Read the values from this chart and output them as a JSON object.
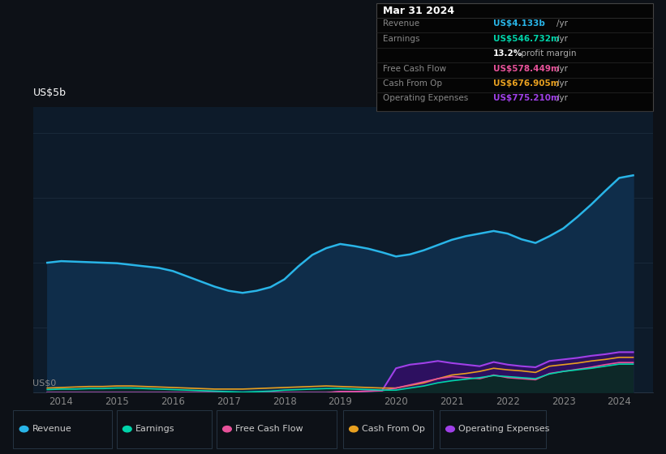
{
  "bg_color": "#0d1117",
  "plot_bg_color": "#0d1b2a",
  "ylabel": "US$5b",
  "y0label": "US$0",
  "ylim": [
    0,
    5.5
  ],
  "yticks": [
    0,
    1.25,
    2.5,
    3.75,
    5.0
  ],
  "xlim": [
    2013.5,
    2024.6
  ],
  "xticks": [
    2014,
    2015,
    2016,
    2017,
    2018,
    2019,
    2020,
    2021,
    2022,
    2023,
    2024
  ],
  "revenue_color": "#29b5e8",
  "earnings_color": "#00d4aa",
  "fcf_color": "#e8529a",
  "cashop_color": "#e8a020",
  "opex_color": "#a040e8",
  "revenue_fill": "#0f2d4a",
  "earnings_fill": "#0d3030",
  "opex_fill": "#3a1070",
  "info_box": {
    "title": "Mar 31 2024",
    "rows": [
      {
        "label": "Revenue",
        "value": "US$4.133b",
        "unit": "/yr",
        "color": "#29b5e8"
      },
      {
        "label": "Earnings",
        "value": "US$546.732m",
        "unit": "/yr",
        "color": "#00d4aa"
      },
      {
        "label": "",
        "value": "13.2%",
        "unit": " profit margin",
        "color": "#ffffff"
      },
      {
        "label": "Free Cash Flow",
        "value": "US$578.449m",
        "unit": "/yr",
        "color": "#e8529a"
      },
      {
        "label": "Cash From Op",
        "value": "US$676.905m",
        "unit": "/yr",
        "color": "#e8a020"
      },
      {
        "label": "Operating Expenses",
        "value": "US$775.210m",
        "unit": "/yr",
        "color": "#a040e8"
      }
    ]
  },
  "years": [
    2013.75,
    2014.0,
    2014.25,
    2014.5,
    2014.75,
    2015.0,
    2015.25,
    2015.5,
    2015.75,
    2016.0,
    2016.25,
    2016.5,
    2016.75,
    2017.0,
    2017.25,
    2017.5,
    2017.75,
    2018.0,
    2018.25,
    2018.5,
    2018.75,
    2019.0,
    2019.25,
    2019.5,
    2019.75,
    2020.0,
    2020.25,
    2020.5,
    2020.75,
    2021.0,
    2021.25,
    2021.5,
    2021.75,
    2022.0,
    2022.25,
    2022.5,
    2022.75,
    2023.0,
    2023.25,
    2023.5,
    2023.75,
    2024.0,
    2024.25
  ],
  "revenue": [
    2.5,
    2.53,
    2.52,
    2.51,
    2.5,
    2.49,
    2.46,
    2.43,
    2.4,
    2.34,
    2.24,
    2.14,
    2.04,
    1.96,
    1.92,
    1.96,
    2.03,
    2.18,
    2.43,
    2.65,
    2.78,
    2.86,
    2.82,
    2.77,
    2.7,
    2.62,
    2.66,
    2.74,
    2.84,
    2.94,
    3.01,
    3.06,
    3.11,
    3.06,
    2.95,
    2.88,
    3.01,
    3.16,
    3.38,
    3.62,
    3.88,
    4.13,
    4.18
  ],
  "earnings": [
    0.06,
    0.07,
    0.07,
    0.08,
    0.08,
    0.09,
    0.09,
    0.08,
    0.07,
    0.06,
    0.05,
    0.04,
    0.03,
    0.02,
    0.01,
    0.02,
    0.03,
    0.05,
    0.06,
    0.07,
    0.08,
    0.08,
    0.07,
    0.06,
    0.05,
    0.05,
    0.09,
    0.13,
    0.19,
    0.23,
    0.26,
    0.29,
    0.33,
    0.31,
    0.29,
    0.27,
    0.36,
    0.41,
    0.44,
    0.47,
    0.51,
    0.55,
    0.55
  ],
  "fcf": [
    0.0,
    0.0,
    0.0,
    0.0,
    0.0,
    0.0,
    0.0,
    0.0,
    0.0,
    0.0,
    0.0,
    0.0,
    0.0,
    0.0,
    0.0,
    0.0,
    0.0,
    0.0,
    0.0,
    0.0,
    0.0,
    0.02,
    0.02,
    0.03,
    0.04,
    0.09,
    0.15,
    0.21,
    0.27,
    0.31,
    0.29,
    0.27,
    0.34,
    0.29,
    0.27,
    0.25,
    0.37,
    0.41,
    0.45,
    0.49,
    0.54,
    0.58,
    0.58
  ],
  "cashop": [
    0.09,
    0.1,
    0.11,
    0.12,
    0.12,
    0.13,
    0.13,
    0.12,
    0.11,
    0.1,
    0.09,
    0.08,
    0.07,
    0.07,
    0.07,
    0.08,
    0.09,
    0.1,
    0.11,
    0.12,
    0.13,
    0.12,
    0.11,
    0.1,
    0.09,
    0.09,
    0.14,
    0.19,
    0.27,
    0.34,
    0.37,
    0.41,
    0.47,
    0.44,
    0.42,
    0.39,
    0.51,
    0.54,
    0.57,
    0.61,
    0.64,
    0.68,
    0.68
  ],
  "opex": [
    0.0,
    0.0,
    0.0,
    0.0,
    0.0,
    0.0,
    0.0,
    0.0,
    0.0,
    0.0,
    0.0,
    0.0,
    0.0,
    0.0,
    0.0,
    0.0,
    0.0,
    0.0,
    0.0,
    0.0,
    0.0,
    0.02,
    0.02,
    0.03,
    0.04,
    0.47,
    0.54,
    0.57,
    0.61,
    0.57,
    0.54,
    0.51,
    0.59,
    0.54,
    0.51,
    0.49,
    0.61,
    0.64,
    0.67,
    0.71,
    0.74,
    0.78,
    0.78
  ],
  "legend_items": [
    {
      "label": "Revenue",
      "color": "#29b5e8"
    },
    {
      "label": "Earnings",
      "color": "#00d4aa"
    },
    {
      "label": "Free Cash Flow",
      "color": "#e8529a"
    },
    {
      "label": "Cash From Op",
      "color": "#e8a020"
    },
    {
      "label": "Operating Expenses",
      "color": "#a040e8"
    }
  ]
}
